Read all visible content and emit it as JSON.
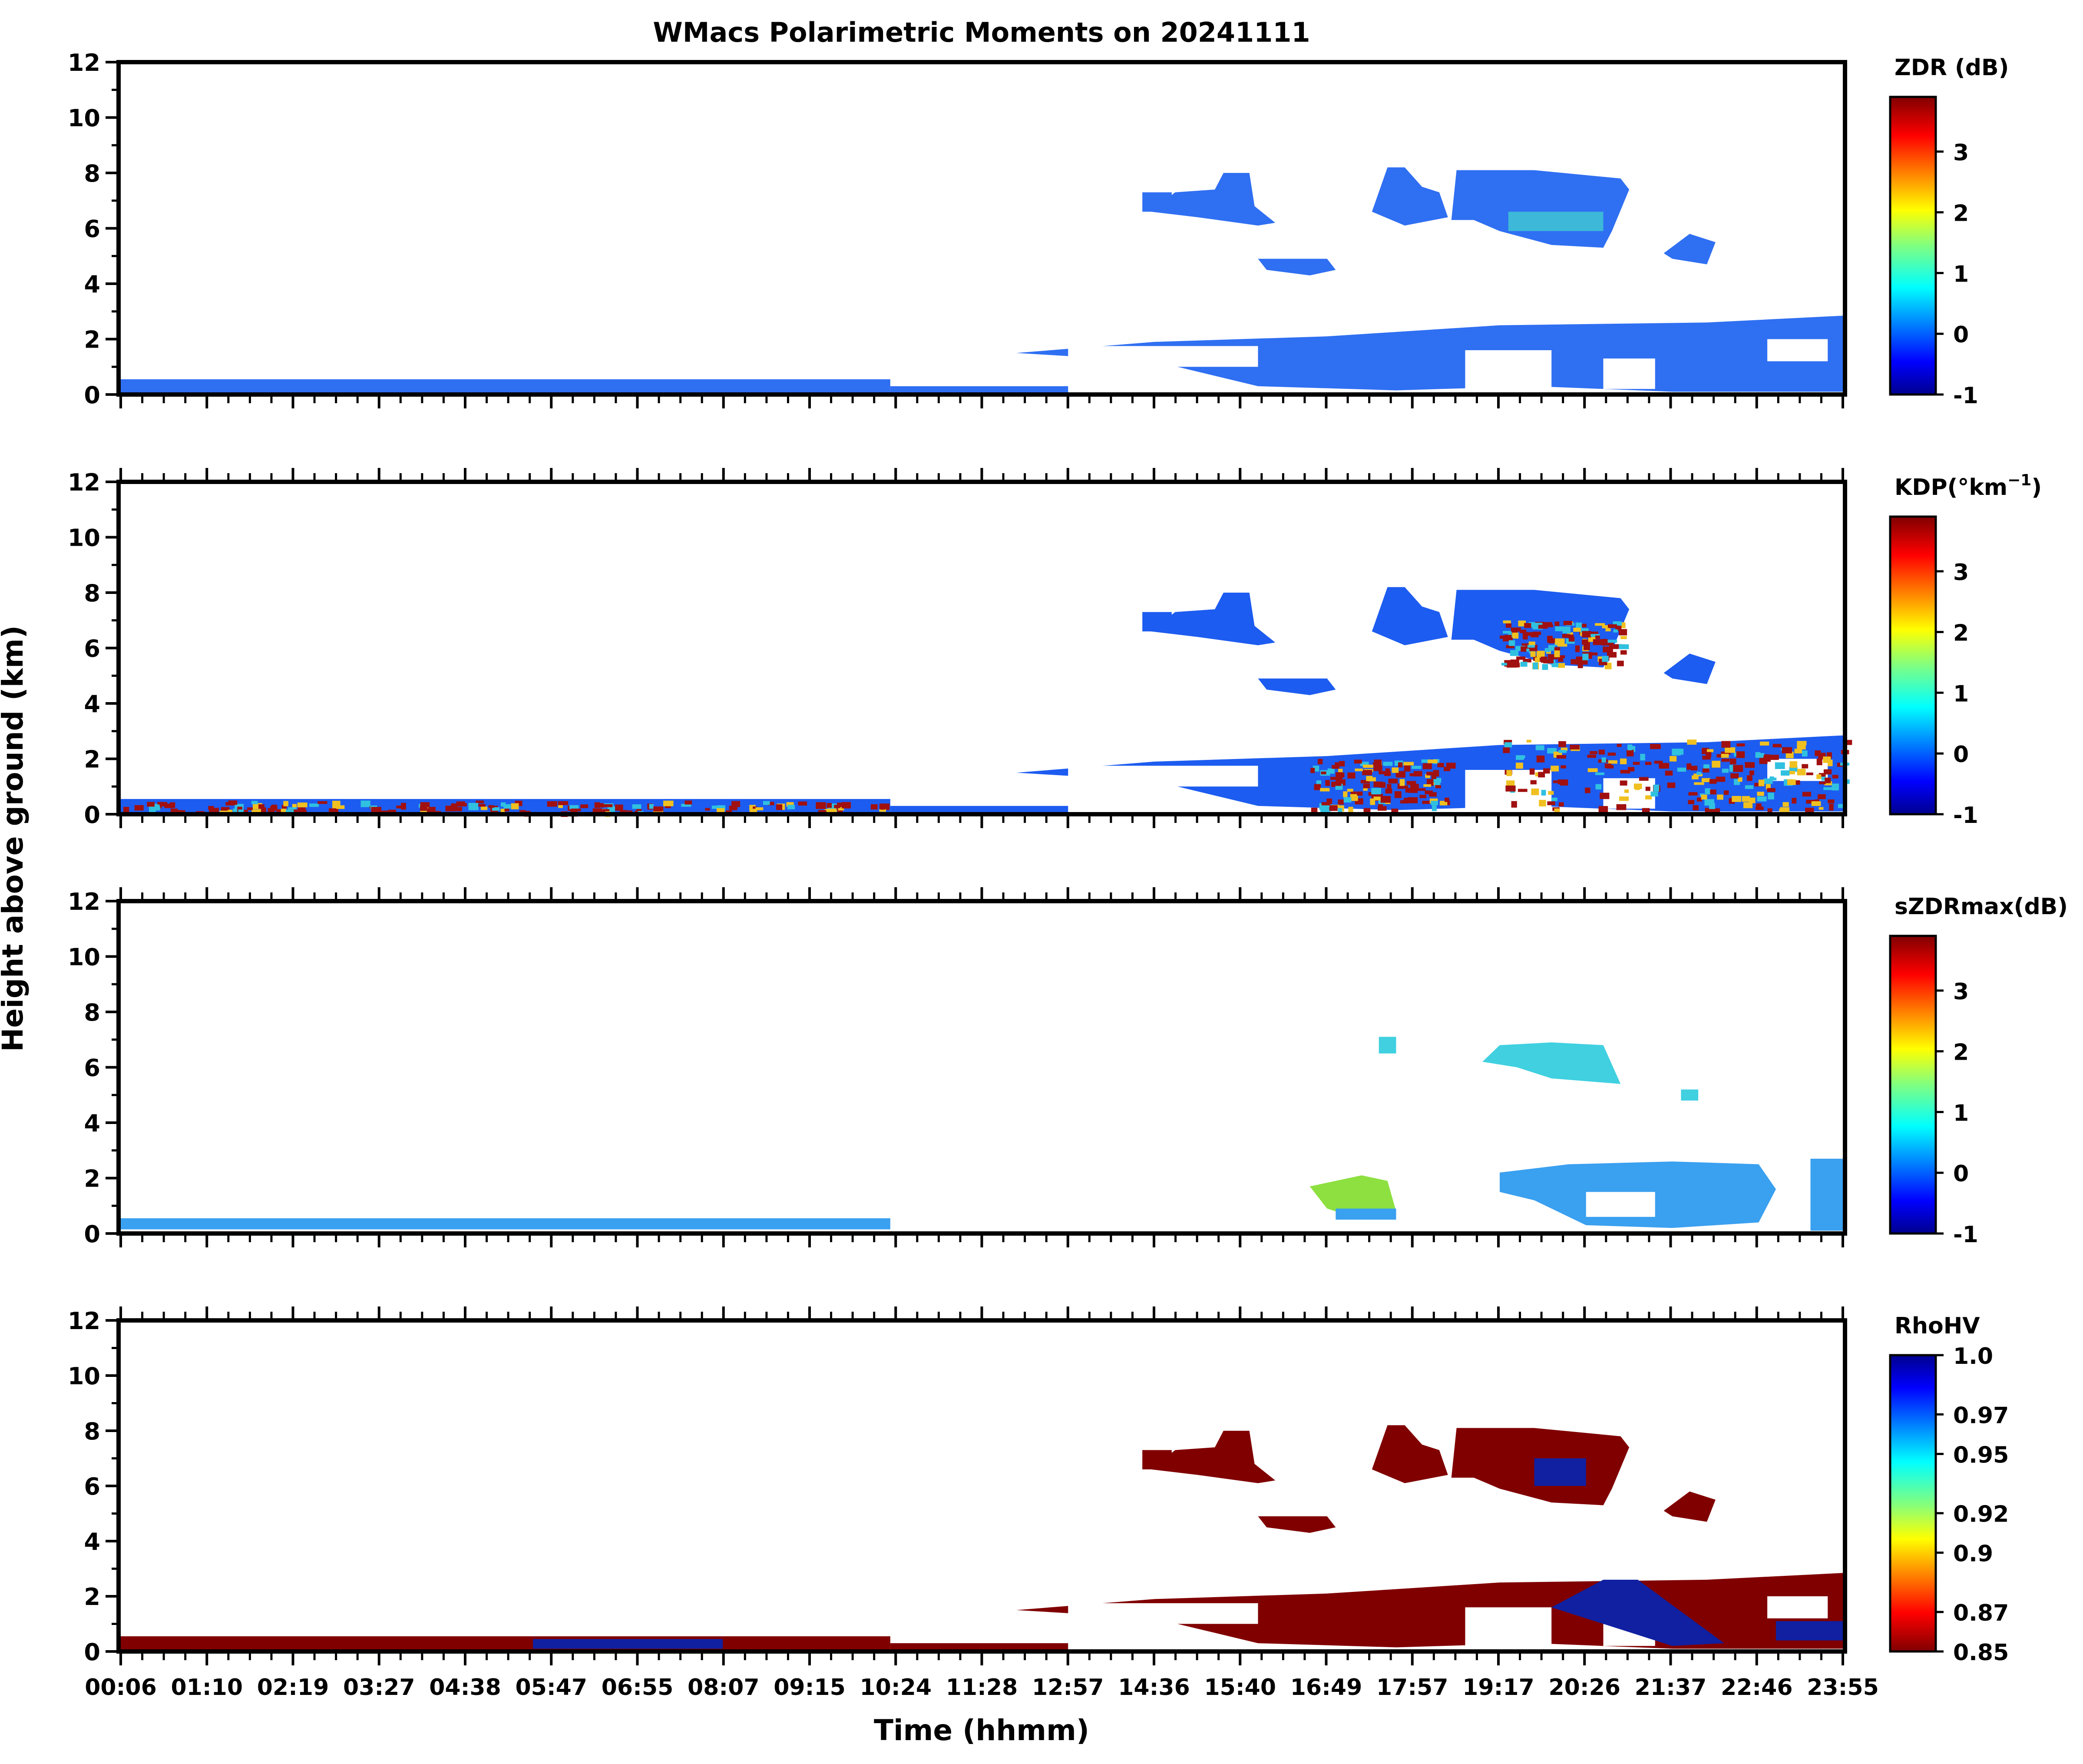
{
  "chart_data": {
    "type": "heatmap",
    "title": "WMacs Polarimetric Moments on 20241111",
    "xlabel": "Time (hhmm)",
    "ylabel": "Height above ground (km)",
    "x_ticks": [
      "00:06",
      "01:10",
      "02:19",
      "03:27",
      "04:38",
      "05:47",
      "06:55",
      "08:07",
      "09:15",
      "10:24",
      "11:28",
      "12:57",
      "14:36",
      "15:40",
      "16:49",
      "17:57",
      "19:17",
      "20:26",
      "21:37",
      "22:46",
      "23:55"
    ],
    "ylim": [
      0,
      12
    ],
    "y_ticks": [
      "0",
      "2",
      "4",
      "6",
      "8",
      "10",
      "12"
    ],
    "colormap": "jet",
    "panels": [
      {
        "id": "zdr",
        "colorbar_label": "ZDR (dB)",
        "colorbar_ticks": [
          "-1",
          "0",
          "1",
          "2",
          "3"
        ],
        "colorbar_range": [
          -1,
          3.9
        ],
        "colormap_reversed": false
      },
      {
        "id": "kdp",
        "colorbar_label": "KDP(°km",
        "colorbar_label_sup": "−1",
        "colorbar_label_end": ")",
        "colorbar_ticks": [
          "-1",
          "0",
          "1",
          "2",
          "3"
        ],
        "colorbar_range": [
          -1,
          3.9
        ],
        "colormap_reversed": false
      },
      {
        "id": "szdrmax",
        "colorbar_label": "sZDRmax(dB)",
        "colorbar_ticks": [
          "-1",
          "0",
          "1",
          "2",
          "3"
        ],
        "colorbar_range": [
          -1,
          3.9
        ],
        "colormap_reversed": false
      },
      {
        "id": "rhohv",
        "colorbar_label": "RhoHV",
        "colorbar_ticks": [
          "0.85",
          "0.87",
          "0.9",
          "0.92",
          "0.95",
          "0.97",
          "1.0"
        ],
        "colorbar_range": [
          0.85,
          1.0
        ],
        "colormap_reversed": true
      }
    ]
  },
  "colors": {
    "zdr_main": "#2f6ff2",
    "zdr_accent": "#3db8d8",
    "kdp_main": "#1d5cf0",
    "kdp_hot": "#a01010",
    "kdp_warm": "#f0c020",
    "szdr_main": "#3aa0f0",
    "szdr_cyan": "#40d0e0",
    "szdr_green": "#8de040",
    "rho_main": "#800000",
    "rho_blue": "#1020a0"
  }
}
